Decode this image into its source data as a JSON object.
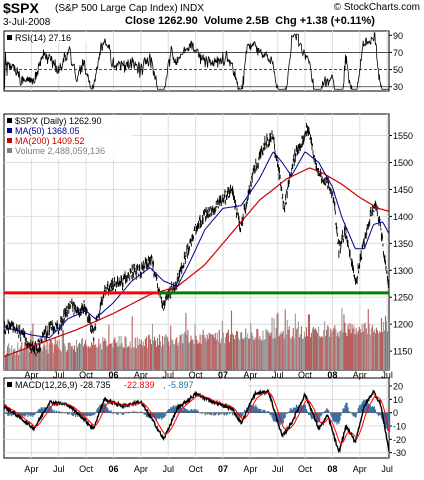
{
  "header": {
    "symbol": "$SPX",
    "full_name": "(S&P 500 Large Cap Index)",
    "exchange": "INDX",
    "brand": "© StockCharts.com",
    "date": "3-Jul-2008",
    "close_label": "Close",
    "close_value": "1262.90",
    "volume_label": "Volume",
    "volume_value": "2.5B",
    "chg_label": "Chg",
    "chg_value": "+1.38 (+0.11%)"
  },
  "chart_data": [
    {
      "type": "line",
      "name": "rsi-panel",
      "legend": "RSI(14) 27.16",
      "ylim": [
        25,
        95
      ],
      "y_ticks": [
        30,
        50,
        70,
        90
      ],
      "guide_lines": [
        30,
        50,
        70
      ],
      "current_value": 27.16
    },
    {
      "type": "line",
      "name": "price-panel",
      "legend": [
        {
          "label": "$SPX (Daily) 1262.90",
          "color": "#000000"
        },
        {
          "label": "MA(50) 1368.05",
          "color": "#00008b"
        },
        {
          "label": "MA(200) 1409.52",
          "color": "#cc0000"
        },
        {
          "label": "Volume 2,488,059,136",
          "color": "#808080"
        }
      ],
      "ylim": [
        1115,
        1590
      ],
      "y_ticks": [
        1150,
        1200,
        1250,
        1300,
        1350,
        1400,
        1450,
        1500,
        1550
      ],
      "x_ticks": [
        "Apr",
        "Jul",
        "Oct",
        "06",
        "Apr",
        "Jul",
        "Oct",
        "07",
        "Apr",
        "Jul",
        "Oct",
        "08",
        "Apr",
        "Jul"
      ],
      "months_from_jan_2005": [
        3,
        6,
        9,
        12,
        15,
        18,
        21,
        24,
        27,
        30,
        33,
        36,
        39,
        42
      ],
      "x_range_months": [
        0.0,
        42.2
      ],
      "price_keypoints": [
        [
          0.0,
          1190
        ],
        [
          1.0,
          1200
        ],
        [
          2.0,
          1180
        ],
        [
          3.3,
          1150
        ],
        [
          4.0,
          1165
        ],
        [
          5.0,
          1195
        ],
        [
          6.0,
          1195
        ],
        [
          7.2,
          1235
        ],
        [
          8.0,
          1220
        ],
        [
          8.8,
          1235
        ],
        [
          9.8,
          1180
        ],
        [
          11.0,
          1260
        ],
        [
          12.0,
          1270
        ],
        [
          13.0,
          1280
        ],
        [
          14.0,
          1295
        ],
        [
          15.0,
          1300
        ],
        [
          16.2,
          1320
        ],
        [
          17.5,
          1230
        ],
        [
          18.0,
          1255
        ],
        [
          19.0,
          1280
        ],
        [
          20.0,
          1330
        ],
        [
          21.0,
          1380
        ],
        [
          22.0,
          1400
        ],
        [
          23.0,
          1415
        ],
        [
          24.0,
          1430
        ],
        [
          25.0,
          1450
        ],
        [
          25.9,
          1380
        ],
        [
          26.5,
          1420
        ],
        [
          27.5,
          1490
        ],
        [
          28.5,
          1530
        ],
        [
          29.4,
          1550
        ],
        [
          30.2,
          1480
        ],
        [
          30.7,
          1410
        ],
        [
          31.2,
          1460
        ],
        [
          32.0,
          1520
        ],
        [
          33.4,
          1565
        ],
        [
          34.2,
          1490
        ],
        [
          35.0,
          1470
        ],
        [
          36.0,
          1450
        ],
        [
          36.7,
          1340
        ],
        [
          37.4,
          1375
        ],
        [
          38.0,
          1320
        ],
        [
          38.6,
          1280
        ],
        [
          39.3,
          1340
        ],
        [
          40.1,
          1400
        ],
        [
          40.7,
          1425
        ],
        [
          41.2,
          1390
        ],
        [
          41.7,
          1320
        ],
        [
          42.2,
          1262.9
        ]
      ],
      "ma50_keypoints": [
        [
          0.0,
          1195
        ],
        [
          3.0,
          1180
        ],
        [
          5.0,
          1175
        ],
        [
          7.0,
          1210
        ],
        [
          9.0,
          1225
        ],
        [
          10.0,
          1210
        ],
        [
          12.0,
          1240
        ],
        [
          14.0,
          1280
        ],
        [
          16.0,
          1305
        ],
        [
          17.5,
          1280
        ],
        [
          19.0,
          1270
        ],
        [
          20.5,
          1320
        ],
        [
          22.0,
          1375
        ],
        [
          24.0,
          1415
        ],
        [
          26.0,
          1420
        ],
        [
          28.0,
          1470
        ],
        [
          29.5,
          1520
        ],
        [
          30.5,
          1500
        ],
        [
          31.5,
          1475
        ],
        [
          33.0,
          1520
        ],
        [
          34.5,
          1500
        ],
        [
          36.0,
          1455
        ],
        [
          37.0,
          1400
        ],
        [
          38.5,
          1340
        ],
        [
          39.5,
          1340
        ],
        [
          40.5,
          1385
        ],
        [
          41.5,
          1390
        ],
        [
          42.2,
          1368.05
        ]
      ],
      "ma200_keypoints": [
        [
          0.0,
          1140
        ],
        [
          4.0,
          1165
        ],
        [
          8.0,
          1190
        ],
        [
          12.0,
          1220
        ],
        [
          16.0,
          1255
        ],
        [
          19.0,
          1270
        ],
        [
          22.0,
          1310
        ],
        [
          25.0,
          1370
        ],
        [
          28.0,
          1430
        ],
        [
          31.0,
          1470
        ],
        [
          33.5,
          1490
        ],
        [
          35.0,
          1480
        ],
        [
          37.0,
          1460
        ],
        [
          39.0,
          1435
        ],
        [
          41.0,
          1415
        ],
        [
          42.2,
          1409.52
        ]
      ],
      "support_level": 1258,
      "support_color": "#008000",
      "resistance_level": 1258,
      "resistance_color": "#ff0000"
    },
    {
      "type": "line",
      "name": "macd-panel",
      "legend": [
        {
          "label": "MACD(12,26,9) -28.735",
          "color": "#000000"
        },
        {
          "label": "-22.839",
          "color": "#ff0000"
        },
        {
          "label": ", -5.897",
          "color": "#1f77b4"
        }
      ],
      "ylim": [
        -34,
        26
      ],
      "y_ticks": [
        -30,
        -20,
        -10,
        0,
        10,
        20
      ],
      "x_ticks": [
        "Apr",
        "Jul",
        "Oct",
        "06",
        "Apr",
        "Jul",
        "Oct",
        "07",
        "Apr",
        "Jul",
        "Oct",
        "08",
        "Apr",
        "Jul"
      ],
      "months_from_jan_2005": [
        3,
        6,
        9,
        12,
        15,
        18,
        21,
        24,
        27,
        30,
        33,
        36,
        39,
        42
      ],
      "macd_keypoints": [
        [
          0.0,
          5
        ],
        [
          2.0,
          -5
        ],
        [
          3.3,
          -12
        ],
        [
          5.0,
          8
        ],
        [
          7.0,
          6
        ],
        [
          8.5,
          -3
        ],
        [
          9.8,
          -12
        ],
        [
          11.0,
          10
        ],
        [
          13.0,
          5
        ],
        [
          15.0,
          8
        ],
        [
          16.5,
          -8
        ],
        [
          17.5,
          -20
        ],
        [
          19.0,
          3
        ],
        [
          21.0,
          14
        ],
        [
          23.0,
          8
        ],
        [
          25.0,
          3
        ],
        [
          26.0,
          -8
        ],
        [
          27.5,
          14
        ],
        [
          29.0,
          16
        ],
        [
          30.5,
          -18
        ],
        [
          31.5,
          -8
        ],
        [
          33.0,
          14
        ],
        [
          34.5,
          -12
        ],
        [
          35.5,
          -2
        ],
        [
          36.7,
          -30
        ],
        [
          37.5,
          -10
        ],
        [
          38.5,
          -22
        ],
        [
          39.5,
          5
        ],
        [
          40.5,
          16
        ],
        [
          41.3,
          6
        ],
        [
          42.2,
          -28.735
        ]
      ]
    }
  ]
}
